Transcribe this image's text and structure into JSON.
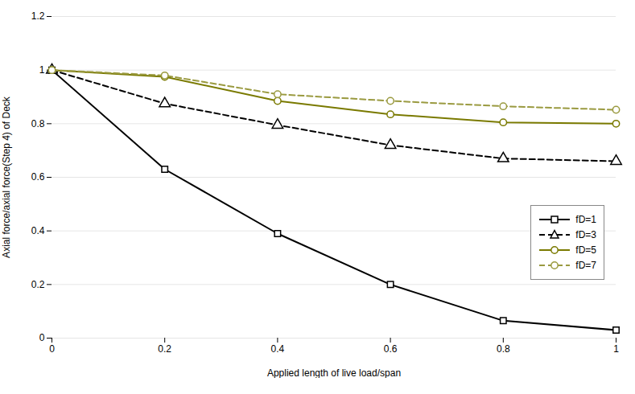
{
  "chart_data": {
    "type": "line",
    "x": [
      0,
      0.2,
      0.4,
      0.6,
      0.8,
      1.0
    ],
    "xlabel": "Applied length of live load/span",
    "ylabel": "Axial force/axial force(Step 4) of Deck",
    "xlim": [
      0,
      1.0
    ],
    "ylim": [
      0,
      1.2
    ],
    "xticks": [
      0,
      0.2,
      0.4,
      0.6,
      0.8,
      1
    ],
    "yticks": [
      0,
      0.2,
      0.4,
      0.6,
      0.8,
      1,
      1.2
    ],
    "grid": "y",
    "legend": "lower right",
    "series": [
      {
        "name": "fD=1",
        "color": "#000000",
        "marker": "square",
        "line_style": "solid",
        "values": [
          1.0,
          0.63,
          0.39,
          0.2,
          0.065,
          0.03
        ]
      },
      {
        "name": "fD=3",
        "color": "#000000",
        "marker": "triangle",
        "line_style": "dashed",
        "values": [
          1.0,
          0.875,
          0.795,
          0.72,
          0.67,
          0.66
        ]
      },
      {
        "name": "fD=5",
        "color": "#7a7a00",
        "marker": "circle",
        "line_style": "solid",
        "values": [
          1.0,
          0.975,
          0.885,
          0.835,
          0.805,
          0.8
        ]
      },
      {
        "name": "fD=7",
        "color": "#9a9a40",
        "marker": "circle",
        "line_style": "dashed",
        "values": [
          1.0,
          0.98,
          0.91,
          0.885,
          0.865,
          0.852
        ]
      }
    ]
  }
}
